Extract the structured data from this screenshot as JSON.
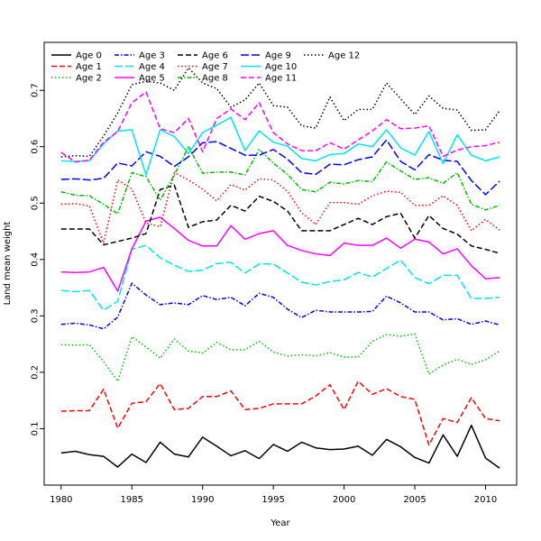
{
  "chart_data": {
    "type": "line",
    "title": "",
    "xlabel": "Year",
    "ylabel": "Land mean weight",
    "xlim": [
      1978.8,
      2012.2
    ],
    "ylim": [
      0.0,
      0.785
    ],
    "x_ticks": [
      1980,
      1985,
      1990,
      1995,
      2000,
      2005,
      2010
    ],
    "y_ticks": [
      0.1,
      0.2,
      0.3,
      0.4,
      0.5,
      0.6,
      0.7
    ],
    "grid": false,
    "legend_position": "top-left",
    "x": [
      1980,
      1981,
      1982,
      1983,
      1984,
      1985,
      1986,
      1987,
      1988,
      1989,
      1990,
      1991,
      1992,
      1993,
      1994,
      1995,
      1996,
      1997,
      1998,
      1999,
      2000,
      2001,
      2002,
      2003,
      2004,
      2005,
      2006,
      2007,
      2008,
      2009,
      2010,
      2011
    ],
    "series": [
      {
        "name": "Age 0",
        "color": "#000000",
        "dash": "solid",
        "values": [
          0.057,
          0.06,
          0.054,
          0.051,
          0.032,
          0.055,
          0.04,
          0.076,
          0.055,
          0.05,
          0.085,
          0.069,
          0.052,
          0.061,
          0.047,
          0.072,
          0.06,
          0.076,
          0.066,
          0.063,
          0.064,
          0.069,
          0.053,
          0.081,
          0.068,
          0.049,
          0.039,
          0.089,
          0.051,
          0.106,
          0.048,
          0.03
        ]
      },
      {
        "name": "Age 1",
        "color": "#ff0000",
        "dash": "dashed",
        "values": [
          0.131,
          0.132,
          0.132,
          0.17,
          0.101,
          0.145,
          0.148,
          0.18,
          0.134,
          0.136,
          0.157,
          0.157,
          0.167,
          0.134,
          0.136,
          0.144,
          0.144,
          0.144,
          0.158,
          0.178,
          0.134,
          0.184,
          0.161,
          0.171,
          0.157,
          0.152,
          0.071,
          0.118,
          0.111,
          0.155,
          0.118,
          0.114
        ]
      },
      {
        "name": "Age 2",
        "color": "#00bb00",
        "dash": "dotted",
        "values": [
          0.249,
          0.248,
          0.249,
          0.219,
          0.184,
          0.263,
          0.245,
          0.225,
          0.259,
          0.238,
          0.234,
          0.253,
          0.24,
          0.24,
          0.255,
          0.236,
          0.229,
          0.231,
          0.229,
          0.235,
          0.227,
          0.227,
          0.255,
          0.267,
          0.264,
          0.268,
          0.197,
          0.213,
          0.223,
          0.214,
          0.222,
          0.238
        ]
      },
      {
        "name": "Age 3",
        "color": "#0000ff",
        "dash": "dashdot",
        "values": [
          0.285,
          0.287,
          0.284,
          0.277,
          0.298,
          0.358,
          0.337,
          0.32,
          0.323,
          0.32,
          0.336,
          0.329,
          0.333,
          0.318,
          0.34,
          0.333,
          0.312,
          0.297,
          0.31,
          0.307,
          0.307,
          0.307,
          0.308,
          0.335,
          0.323,
          0.307,
          0.307,
          0.293,
          0.295,
          0.285,
          0.291,
          0.284
        ]
      },
      {
        "name": "Age 4",
        "color": "#00e5ee",
        "dash": "longdash",
        "values": [
          0.345,
          0.343,
          0.345,
          0.31,
          0.326,
          0.418,
          0.425,
          0.403,
          0.39,
          0.379,
          0.381,
          0.393,
          0.395,
          0.376,
          0.392,
          0.392,
          0.376,
          0.36,
          0.355,
          0.361,
          0.364,
          0.377,
          0.369,
          0.384,
          0.399,
          0.368,
          0.357,
          0.372,
          0.372,
          0.331,
          0.331,
          0.333
        ]
      },
      {
        "name": "Age 5",
        "color": "#ff00ff",
        "dash": "solid",
        "values": [
          0.378,
          0.377,
          0.378,
          0.386,
          0.344,
          0.419,
          0.468,
          0.475,
          0.455,
          0.434,
          0.424,
          0.424,
          0.46,
          0.436,
          0.446,
          0.451,
          0.425,
          0.416,
          0.41,
          0.407,
          0.429,
          0.425,
          0.425,
          0.438,
          0.42,
          0.436,
          0.431,
          0.41,
          0.419,
          0.389,
          0.366,
          0.368
        ]
      },
      {
        "name": "Age 6",
        "color": "#000000",
        "dash": "dashed",
        "values": [
          0.454,
          0.454,
          0.454,
          0.426,
          0.432,
          0.438,
          0.446,
          0.524,
          0.532,
          0.457,
          0.467,
          0.47,
          0.496,
          0.486,
          0.512,
          0.503,
          0.486,
          0.451,
          0.451,
          0.451,
          0.462,
          0.473,
          0.462,
          0.476,
          0.482,
          0.438,
          0.478,
          0.455,
          0.445,
          0.424,
          0.418,
          0.411
        ]
      },
      {
        "name": "Age 7",
        "color": "#ff0000",
        "dash": "dotted",
        "values": [
          0.498,
          0.499,
          0.495,
          0.429,
          0.541,
          0.525,
          0.465,
          0.458,
          0.554,
          0.541,
          0.525,
          0.504,
          0.533,
          0.523,
          0.543,
          0.541,
          0.521,
          0.483,
          0.462,
          0.501,
          0.501,
          0.498,
          0.513,
          0.521,
          0.519,
          0.496,
          0.496,
          0.513,
          0.496,
          0.451,
          0.471,
          0.452
        ]
      },
      {
        "name": "Age 8",
        "color": "#00bb00",
        "dash": "dashdot",
        "values": [
          0.52,
          0.514,
          0.513,
          0.498,
          0.481,
          0.554,
          0.547,
          0.505,
          0.55,
          0.6,
          0.553,
          0.555,
          0.555,
          0.55,
          0.595,
          0.571,
          0.551,
          0.524,
          0.52,
          0.537,
          0.534,
          0.54,
          0.538,
          0.573,
          0.557,
          0.542,
          0.545,
          0.535,
          0.554,
          0.498,
          0.488,
          0.496
        ]
      },
      {
        "name": "Age 9",
        "color": "#0000ff",
        "dash": "longdash",
        "values": [
          0.542,
          0.543,
          0.541,
          0.544,
          0.571,
          0.566,
          0.591,
          0.583,
          0.565,
          0.582,
          0.607,
          0.609,
          0.597,
          0.585,
          0.585,
          0.595,
          0.578,
          0.554,
          0.551,
          0.569,
          0.568,
          0.577,
          0.582,
          0.612,
          0.574,
          0.559,
          0.586,
          0.576,
          0.574,
          0.54,
          0.515,
          0.539
        ]
      },
      {
        "name": "Age 10",
        "color": "#00e5ee",
        "dash": "solid",
        "values": [
          0.575,
          0.574,
          0.575,
          0.605,
          0.628,
          0.63,
          0.55,
          0.63,
          0.618,
          0.588,
          0.625,
          0.638,
          0.652,
          0.593,
          0.628,
          0.608,
          0.601,
          0.579,
          0.575,
          0.586,
          0.588,
          0.605,
          0.6,
          0.63,
          0.598,
          0.585,
          0.627,
          0.57,
          0.621,
          0.585,
          0.575,
          0.582
        ]
      },
      {
        "name": "Age 11",
        "color": "#ff00ff",
        "dash": "dashed",
        "values": [
          0.59,
          0.573,
          0.576,
          0.608,
          0.627,
          0.678,
          0.697,
          0.632,
          0.625,
          0.65,
          0.591,
          0.65,
          0.667,
          0.648,
          0.678,
          0.625,
          0.605,
          0.593,
          0.593,
          0.607,
          0.596,
          0.612,
          0.628,
          0.648,
          0.632,
          0.633,
          0.637,
          0.583,
          0.594,
          0.6,
          0.602,
          0.608
        ]
      },
      {
        "name": "Age 12",
        "color": "#000000",
        "dash": "dotted",
        "values": [
          0.582,
          0.584,
          0.583,
          0.619,
          0.66,
          0.71,
          0.716,
          0.713,
          0.7,
          0.74,
          0.713,
          0.703,
          0.67,
          0.683,
          0.713,
          0.673,
          0.67,
          0.637,
          0.633,
          0.688,
          0.646,
          0.666,
          0.666,
          0.713,
          0.685,
          0.657,
          0.69,
          0.668,
          0.665,
          0.629,
          0.63,
          0.664
        ]
      }
    ]
  }
}
